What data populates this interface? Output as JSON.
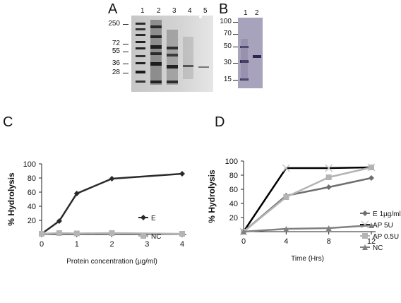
{
  "panels": {
    "A": {
      "letter": "A",
      "lanes": [
        "1",
        "2",
        "3",
        "4",
        "5"
      ],
      "mw_markers": [
        "250",
        "72",
        "55",
        "36",
        "28"
      ]
    },
    "B": {
      "letter": "B",
      "lanes": [
        "1",
        "2"
      ],
      "mw_markers": [
        "100",
        "70",
        "50",
        "30",
        "15"
      ]
    },
    "C": {
      "letter": "C"
    },
    "D": {
      "letter": "D"
    }
  },
  "chart_data": [
    {
      "panel": "C",
      "type": "line",
      "title": "",
      "xlabel": "Protein concentration (µg/ml)",
      "ylabel": "% Hydrolysis",
      "xlim": [
        0,
        4
      ],
      "ylim": [
        0,
        100
      ],
      "xticks": [
        "0",
        "1",
        "2",
        "3",
        "4"
      ],
      "yticks": [
        "20",
        "40",
        "60",
        "80",
        "100"
      ],
      "legend_position": "right",
      "series": [
        {
          "name": "E",
          "color": "#2a2a2a",
          "marker": "diamond",
          "x": [
            0,
            0.5,
            1,
            2,
            4
          ],
          "y": [
            1,
            19,
            58,
            79,
            86
          ]
        },
        {
          "name": "NC",
          "color": "#b4b4b4",
          "marker": "square",
          "x": [
            0,
            0.5,
            1,
            2,
            4
          ],
          "y": [
            1,
            2,
            1.5,
            2,
            1
          ]
        }
      ]
    },
    {
      "panel": "D",
      "type": "line",
      "title": "",
      "xlabel": "Time (Hrs)",
      "ylabel": "% Hydrolysis",
      "xlim": [
        0,
        12
      ],
      "ylim": [
        0,
        100
      ],
      "xticks": [
        "0",
        "4",
        "8",
        "12"
      ],
      "yticks": [
        "20",
        "40",
        "60",
        "80",
        "100"
      ],
      "legend_position": "right",
      "series": [
        {
          "name": "E 1µg/ml",
          "color": "#6e6e6e",
          "marker": "diamond",
          "x": [
            0,
            4,
            8,
            12
          ],
          "y": [
            0,
            51,
            63,
            76
          ]
        },
        {
          "name": "AP 5U",
          "color": "#000000",
          "marker": "x",
          "x": [
            0,
            4,
            8,
            12
          ],
          "y": [
            0,
            90,
            90,
            91
          ]
        },
        {
          "name": "AP 0.5U",
          "color": "#b4b4b4",
          "marker": "square",
          "x": [
            0,
            4,
            8,
            12
          ],
          "y": [
            0,
            49,
            77,
            91
          ]
        },
        {
          "name": "NC",
          "color": "#808080",
          "marker": "triangle",
          "x": [
            0,
            4,
            8,
            12
          ],
          "y": [
            0,
            4,
            5,
            9
          ]
        }
      ]
    }
  ]
}
